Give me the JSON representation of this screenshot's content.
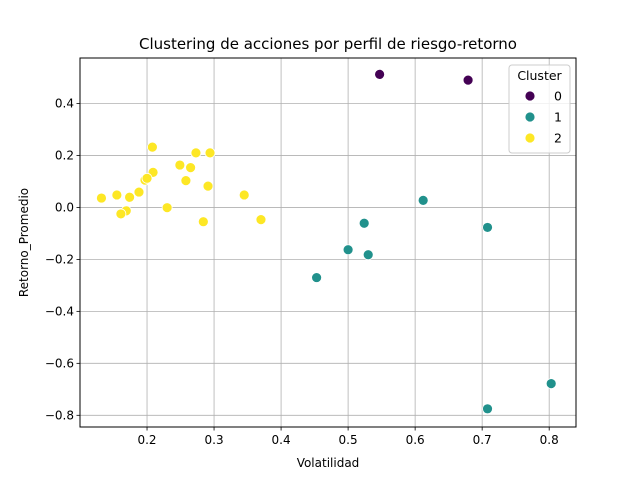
{
  "chart_data": {
    "type": "scatter",
    "title": "Clustering de acciones por perfil de riesgo-retorno",
    "xlabel": "Volatilidad",
    "ylabel": "Retorno_Promedio",
    "xlim": [
      0.1,
      0.84
    ],
    "ylim": [
      -0.845,
      0.575
    ],
    "xticks": [
      0.2,
      0.3,
      0.4,
      0.5,
      0.6,
      0.7,
      0.8
    ],
    "xtick_labels": [
      "0.2",
      "0.3",
      "0.4",
      "0.5",
      "0.6",
      "0.7",
      "0.8"
    ],
    "yticks": [
      -0.8,
      -0.6,
      -0.4,
      -0.2,
      0.0,
      0.2,
      0.4
    ],
    "ytick_labels": [
      "−0.8",
      "−0.6",
      "−0.4",
      "−0.2",
      "0.0",
      "0.2",
      "0.4"
    ],
    "grid": true,
    "legend": {
      "title": "Cluster",
      "position": "top-right"
    },
    "series": [
      {
        "name": "0",
        "color": "#440154",
        "points": [
          [
            0.547,
            0.512
          ],
          [
            0.679,
            0.49
          ]
        ]
      },
      {
        "name": "1",
        "color": "#21918c",
        "points": [
          [
            0.612,
            0.027
          ],
          [
            0.708,
            -0.077
          ],
          [
            0.524,
            -0.061
          ],
          [
            0.5,
            -0.163
          ],
          [
            0.53,
            -0.182
          ],
          [
            0.453,
            -0.27
          ],
          [
            0.803,
            -0.678
          ],
          [
            0.708,
            -0.775
          ]
        ]
      },
      {
        "name": "2",
        "color": "#fde725",
        "points": [
          [
            0.208,
            0.232
          ],
          [
            0.273,
            0.21
          ],
          [
            0.294,
            0.21
          ],
          [
            0.249,
            0.163
          ],
          [
            0.209,
            0.135
          ],
          [
            0.265,
            0.153
          ],
          [
            0.197,
            0.105
          ],
          [
            0.258,
            0.103
          ],
          [
            0.2,
            0.112
          ],
          [
            0.291,
            0.082
          ],
          [
            0.188,
            0.059
          ],
          [
            0.345,
            0.048
          ],
          [
            0.132,
            0.036
          ],
          [
            0.155,
            0.048
          ],
          [
            0.174,
            0.039
          ],
          [
            0.23,
            -0.001
          ],
          [
            0.169,
            -0.013
          ],
          [
            0.161,
            -0.025
          ],
          [
            0.284,
            -0.055
          ],
          [
            0.37,
            -0.047
          ]
        ]
      }
    ]
  }
}
